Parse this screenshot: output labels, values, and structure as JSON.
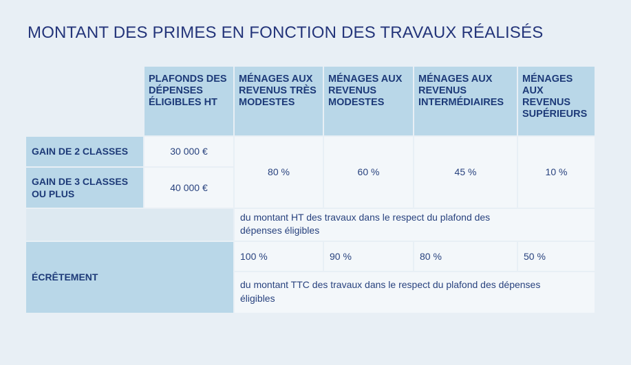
{
  "title": "MONTANT DES PRIMES EN FONCTION DES TRAVAUX RÉALISÉS",
  "headers": {
    "plafonds": "PLAFONDS DES DÉPENSES ÉLIGIBLES HT",
    "tres_modestes": "MÉNAGES AUX REVENUS TRÈS MODESTES",
    "modestes": "MÉNAGES AUX REVENUS MODESTES",
    "intermediaires": "MÉNAGES AUX REVENUS INTERMÉDIAIRES",
    "superieurs": "MÉNAGES AUX REVENUS SUPÉRIEURS"
  },
  "rows": {
    "gain2": {
      "label": "GAIN DE 2 CLASSES",
      "plafond": "30 000 €"
    },
    "gain3": {
      "label": "GAIN DE 3 CLASSES OU PLUS",
      "plafond": "40 000 €"
    }
  },
  "rates": {
    "tres_modestes": "80 %",
    "modestes": "60 %",
    "intermediaires": "45 %",
    "superieurs": "10 %"
  },
  "rates_note": "du montant HT des travaux dans le respect du plafond des dépenses éligibles",
  "ecretement": {
    "label": "ÉCRÊTEMENT",
    "tres_modestes": "100 %",
    "modestes": "90 %",
    "intermediaires": "80 %",
    "superieurs": "50 %",
    "note": "du montant TTC des travaux dans le respect du plafond des dépenses éligibles"
  }
}
